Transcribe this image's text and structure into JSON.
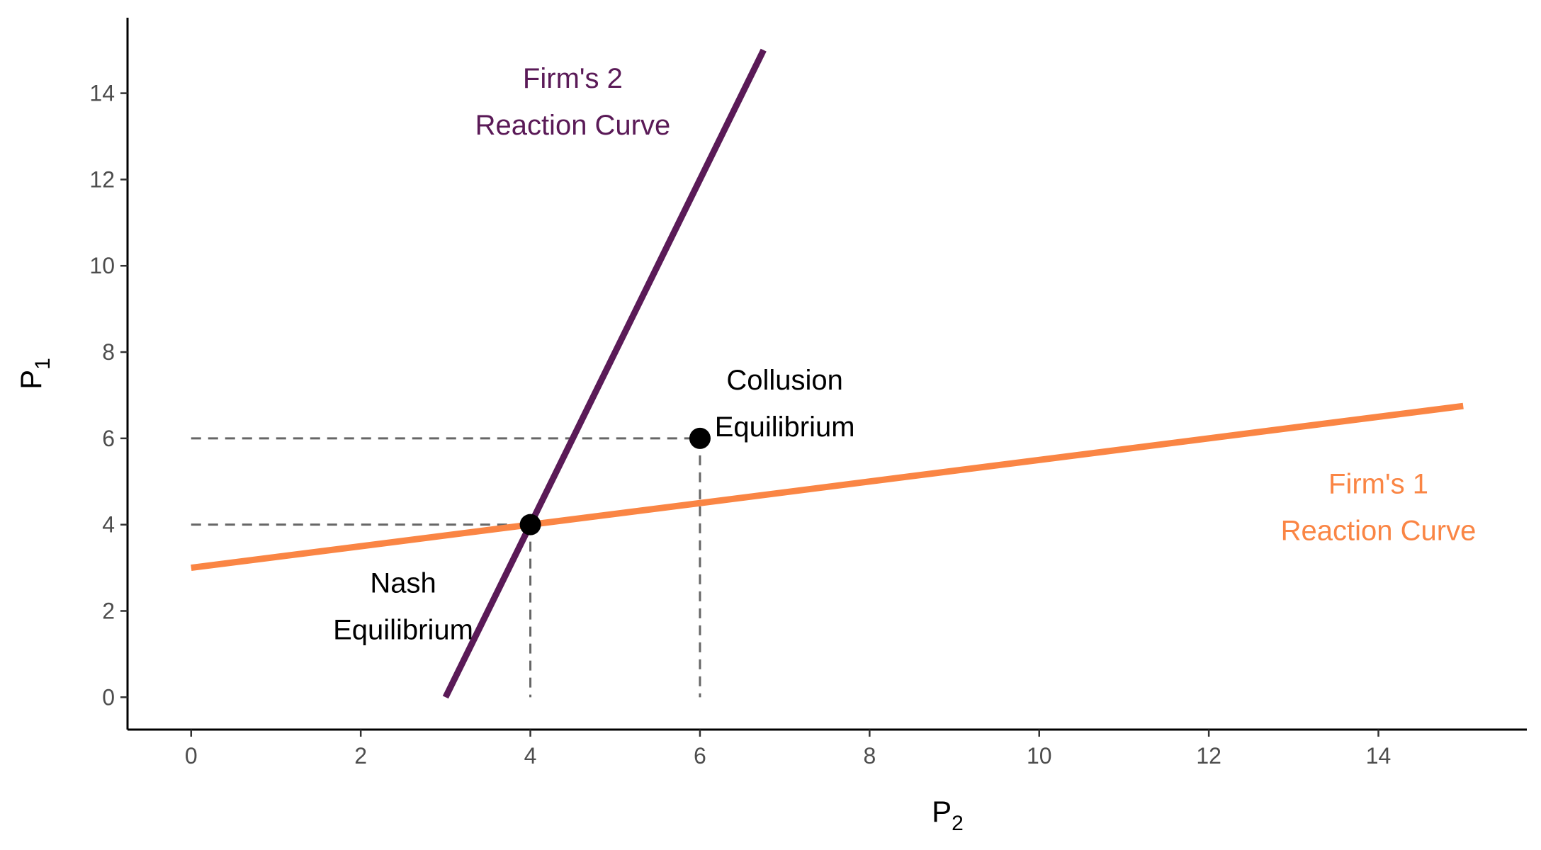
{
  "chart_data": {
    "type": "line",
    "xlabel": "P",
    "xlabel_sub": "2",
    "ylabel": "P",
    "ylabel_sub": "1",
    "xlim": [
      -0.75,
      15.75
    ],
    "ylim": [
      -0.75,
      15.75
    ],
    "x_ticks": [
      0,
      2,
      4,
      6,
      8,
      10,
      12,
      14
    ],
    "y_ticks": [
      0,
      2,
      4,
      6,
      8,
      10,
      12,
      14
    ],
    "grid": false,
    "legend": "none",
    "series": [
      {
        "key": "firm2",
        "color": "#5a1a57",
        "x": [
          3,
          6.75
        ],
        "y": [
          0,
          15
        ]
      },
      {
        "key": "firm1",
        "color": "#fa8544",
        "x": [
          0,
          15
        ],
        "y": [
          3,
          6.75
        ]
      }
    ],
    "guides": [
      {
        "x": [
          0,
          4
        ],
        "y": [
          4,
          4
        ]
      },
      {
        "x": [
          4,
          4
        ],
        "y": [
          4,
          0
        ]
      },
      {
        "x": [
          0,
          6
        ],
        "y": [
          6,
          6
        ]
      },
      {
        "x": [
          6,
          6
        ],
        "y": [
          6,
          0
        ]
      }
    ],
    "points": [
      {
        "key": "nash",
        "x": 4,
        "y": 4,
        "color": "#000000"
      },
      {
        "key": "collusion",
        "x": 6,
        "y": 6,
        "color": "#000000"
      }
    ],
    "annotations": [
      {
        "key": "firm2-label",
        "lines": [
          "Firm's 2",
          "Reaction Curve"
        ],
        "x": 4.5,
        "y": 13.8,
        "color": "#5a1a57"
      },
      {
        "key": "firm1-label",
        "lines": [
          "Firm's 1",
          "Reaction Curve"
        ],
        "x": 14,
        "y": 4.4,
        "color": "#fa8544"
      },
      {
        "key": "nash-label",
        "lines": [
          "Nash",
          "Equilibrium"
        ],
        "x": 2.5,
        "y": 2.1,
        "color": "#000000"
      },
      {
        "key": "collusion-label",
        "lines": [
          "Collusion",
          "Equilibrium"
        ],
        "x": 7.0,
        "y": 6.8,
        "color": "#000000"
      }
    ]
  }
}
